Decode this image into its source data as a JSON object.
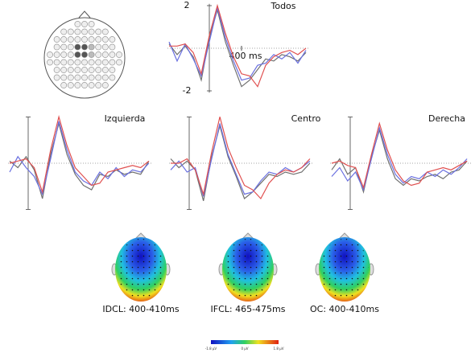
{
  "chart_data": [
    {
      "type": "line",
      "title": "Todos",
      "annotation": "400 ms",
      "x": [
        -500,
        -400,
        -300,
        -200,
        -100,
        0,
        100,
        200,
        300,
        400,
        500,
        600,
        700,
        800,
        900,
        1000,
        1100,
        1200
      ],
      "xlim": [
        -520,
        1250
      ],
      "ylim": [
        2.2,
        -2.2
      ],
      "yticks": [
        -2,
        2
      ],
      "series": [
        {
          "color": "#707070",
          "values": [
            0.2,
            -0.3,
            0.1,
            -0.4,
            -1.5,
            0.5,
            1.8,
            0.3,
            -0.8,
            -1.8,
            -1.5,
            -1.0,
            -0.5,
            -0.6,
            -0.3,
            -0.4,
            -0.6,
            -0.2
          ]
        },
        {
          "color": "#6a70e0",
          "values": [
            0.3,
            -0.6,
            0.2,
            -0.5,
            -1.3,
            0.3,
            1.9,
            0.5,
            -0.6,
            -1.5,
            -1.4,
            -0.8,
            -0.7,
            -0.3,
            -0.5,
            -0.2,
            -0.7,
            -0.1
          ]
        },
        {
          "color": "#e05050",
          "values": [
            0.1,
            0.1,
            0.2,
            -0.2,
            -1.2,
            0.6,
            2.0,
            0.7,
            -0.4,
            -1.2,
            -1.3,
            -1.8,
            -0.8,
            -0.4,
            -0.2,
            -0.1,
            -0.3,
            0.0
          ]
        }
      ]
    },
    {
      "type": "line",
      "title": "Izquierda",
      "x": [
        -500,
        -400,
        -300,
        -200,
        -100,
        0,
        100,
        200,
        300,
        400,
        500,
        600,
        700,
        800,
        900,
        1000,
        1100,
        1200
      ],
      "xlim": [
        -520,
        1250
      ],
      "ylim": [
        2.2,
        -2.2
      ],
      "series": [
        {
          "color": "#707070",
          "values": [
            0.1,
            -0.2,
            0.3,
            -0.3,
            -1.6,
            0.4,
            1.8,
            0.4,
            -0.5,
            -1.0,
            -1.2,
            -0.5,
            -0.6,
            -0.3,
            -0.5,
            -0.4,
            -0.5,
            0.1
          ]
        },
        {
          "color": "#6a70e0",
          "values": [
            -0.4,
            0.3,
            -0.2,
            -0.6,
            -1.4,
            0.2,
            1.9,
            0.6,
            -0.4,
            -0.8,
            -1.0,
            -0.4,
            -0.7,
            -0.2,
            -0.6,
            -0.3,
            -0.4,
            0.0
          ]
        },
        {
          "color": "#e05050",
          "values": [
            0.0,
            0.1,
            0.2,
            -0.2,
            -1.3,
            0.6,
            2.1,
            0.8,
            -0.2,
            -0.6,
            -1.0,
            -0.9,
            -0.4,
            -0.3,
            -0.2,
            -0.1,
            -0.2,
            0.1
          ]
        }
      ]
    },
    {
      "type": "line",
      "title": "Centro",
      "x": [
        -500,
        -400,
        -300,
        -200,
        -100,
        0,
        100,
        200,
        300,
        400,
        500,
        600,
        700,
        800,
        900,
        1000,
        1100,
        1200
      ],
      "xlim": [
        -520,
        1250
      ],
      "ylim": [
        2.2,
        -2.2
      ],
      "series": [
        {
          "color": "#707070",
          "values": [
            0.2,
            -0.2,
            0.1,
            -0.3,
            -1.7,
            0.3,
            1.7,
            0.3,
            -0.6,
            -1.6,
            -1.3,
            -0.9,
            -0.5,
            -0.6,
            -0.4,
            -0.5,
            -0.4,
            0.0
          ]
        },
        {
          "color": "#6a70e0",
          "values": [
            -0.3,
            0.1,
            -0.4,
            -0.2,
            -1.5,
            0.2,
            1.8,
            0.4,
            -0.5,
            -1.4,
            -1.3,
            -0.8,
            -0.4,
            -0.5,
            -0.2,
            -0.4,
            -0.2,
            0.1
          ]
        },
        {
          "color": "#e05050",
          "values": [
            0.0,
            0.0,
            0.2,
            -0.3,
            -1.4,
            0.5,
            2.1,
            0.7,
            -0.2,
            -1.0,
            -1.2,
            -1.6,
            -0.9,
            -0.5,
            -0.3,
            -0.4,
            -0.2,
            0.2
          ]
        }
      ]
    },
    {
      "type": "line",
      "title": "Derecha",
      "x": [
        -500,
        -400,
        -300,
        -200,
        -100,
        0,
        100,
        200,
        300,
        400,
        500,
        600,
        700,
        800,
        900,
        1000,
        1100,
        1200
      ],
      "xlim": [
        -520,
        1250
      ],
      "ylim": [
        2.2,
        -2.2
      ],
      "series": [
        {
          "color": "#707070",
          "values": [
            -0.3,
            0.2,
            -0.5,
            -0.2,
            -1.3,
            0.3,
            1.5,
            0.2,
            -0.7,
            -1.0,
            -0.7,
            -0.8,
            -0.6,
            -0.5,
            -0.7,
            -0.4,
            -0.3,
            0.1
          ]
        },
        {
          "color": "#6a70e0",
          "values": [
            -0.6,
            -0.2,
            -0.8,
            -0.4,
            -1.2,
            0.2,
            1.6,
            0.4,
            -0.5,
            -0.9,
            -0.6,
            -0.7,
            -0.4,
            -0.6,
            -0.3,
            -0.5,
            -0.2,
            0.2
          ]
        },
        {
          "color": "#e05050",
          "values": [
            0.0,
            0.1,
            -0.1,
            -0.2,
            -1.1,
            0.4,
            1.8,
            0.6,
            -0.3,
            -0.8,
            -1.0,
            -0.9,
            -0.4,
            -0.3,
            -0.2,
            -0.3,
            -0.1,
            0.1
          ]
        }
      ]
    }
  ],
  "topomaps": [
    {
      "label": "IDCL: 400-410ms"
    },
    {
      "label": "IFCL: 465-475ms"
    },
    {
      "label": "OC: 400-410ms"
    }
  ],
  "colorbar": {
    "labels": [
      "-1.8 µV",
      "0 µV",
      "1.8 µV"
    ]
  }
}
